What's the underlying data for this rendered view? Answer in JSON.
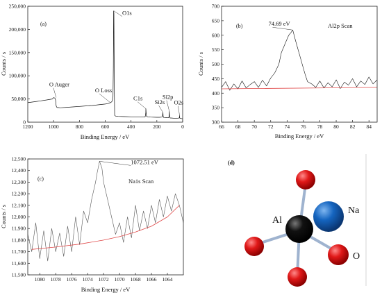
{
  "chart_data": [
    {
      "type": "line",
      "panel_label": "(a)",
      "xlabel": "Binding Energy / eV",
      "ylabel": "Counts / s",
      "xlim": [
        1200,
        0
      ],
      "ylim": [
        0,
        250000
      ],
      "xticks": [
        1200,
        1000,
        800,
        600,
        400,
        200,
        0
      ],
      "xtick_labels": [
        "1200",
        "1000",
        "800",
        "600",
        "400",
        "200",
        "0"
      ],
      "yticks": [
        0,
        50000,
        100000,
        150000,
        200000,
        250000
      ],
      "ytick_labels": [
        "0",
        "50,000",
        "100,000",
        "150,000",
        "200,000",
        "250,000"
      ],
      "series": [
        {
          "x": [
            1200,
            1150,
            1100,
            1050,
            1010,
            1000,
            990,
            985,
            980,
            975,
            970,
            960,
            950,
            900,
            850,
            800,
            750,
            700,
            650,
            600,
            580,
            570,
            560,
            555,
            550,
            545,
            540,
            537,
            535,
            533,
            531,
            529,
            527,
            520,
            500,
            450,
            400,
            350,
            300,
            290,
            286,
            285,
            283,
            280,
            270,
            250,
            200,
            180,
            160,
            155,
            153,
            151,
            148,
            145,
            130,
            120,
            110,
            105,
            103,
            101,
            99,
            96,
            90,
            70,
            50,
            30,
            25,
            24,
            23,
            22,
            20,
            15,
            10,
            5,
            0
          ],
          "y": [
            42000,
            44000,
            46000,
            48000,
            50000,
            53000,
            52000,
            48000,
            35000,
            32000,
            31500,
            31500,
            31000,
            32000,
            33000,
            34000,
            35000,
            36000,
            37500,
            39000,
            40000,
            41000,
            42000,
            43000,
            44000,
            46000,
            55000,
            120000,
            240000,
            235000,
            150000,
            60000,
            15000,
            13000,
            12500,
            12000,
            11500,
            11000,
            11000,
            12000,
            20000,
            29000,
            20000,
            12500,
            11500,
            11000,
            10500,
            10500,
            11000,
            16000,
            21000,
            13000,
            10500,
            10000,
            9800,
            9600,
            9500,
            12000,
            23000,
            13000,
            9500,
            9000,
            9000,
            8500,
            8500,
            8700,
            10500,
            14000,
            10000,
            8500,
            8200,
            8000,
            7800,
            7500,
            7000
          ]
        }
      ],
      "annotations": [
        {
          "text": "O1s",
          "x": 533,
          "y": 240000
        },
        {
          "text": "O Auger",
          "x": 980,
          "y": 53000
        },
        {
          "text": "O Loss",
          "x": 560,
          "y": 42000
        },
        {
          "text": "C1s",
          "x": 285,
          "y": 29000
        },
        {
          "text": "Si2s",
          "x": 153,
          "y": 21000
        },
        {
          "text": "Si2p",
          "x": 103,
          "y": 23000
        },
        {
          "text": "O2s",
          "x": 24,
          "y": 14000
        }
      ]
    },
    {
      "type": "line",
      "panel_label": "(b)",
      "title": "Al2p Scan",
      "xlabel": "Binding Energy / eV",
      "ylabel": "Counts / s",
      "xlim": [
        66,
        85
      ],
      "ylim": [
        300,
        700
      ],
      "xticks": [
        66,
        68,
        70,
        72,
        74,
        76,
        78,
        80,
        82,
        84
      ],
      "xtick_labels": [
        "66",
        "68",
        "70",
        "72",
        "74",
        "76",
        "78",
        "80",
        "82",
        "84"
      ],
      "yticks": [
        300,
        350,
        400,
        450,
        500,
        550,
        600,
        650,
        700
      ],
      "ytick_labels": [
        "300",
        "350",
        "400",
        "450",
        "500",
        "550",
        "600",
        "650",
        "700"
      ],
      "series": [
        {
          "x": [
            66,
            66.5,
            67,
            67.5,
            68,
            68.5,
            69,
            69.5,
            70,
            70.5,
            71,
            71.5,
            72,
            72.5,
            73,
            73.3,
            73.6,
            73.9,
            74.2,
            74.5,
            74.69,
            75,
            75.3,
            75.6,
            75.9,
            76.2,
            76.5,
            77,
            77.5,
            78,
            78.5,
            79,
            79.5,
            80,
            80.5,
            81,
            81.5,
            82,
            82.5,
            83,
            83.5,
            84,
            84.5,
            85
          ],
          "y": [
            420,
            440,
            410,
            432,
            415,
            442,
            418,
            430,
            440,
            420,
            445,
            425,
            452,
            470,
            500,
            540,
            560,
            580,
            600,
            610,
            618,
            585,
            555,
            525,
            495,
            465,
            440,
            432,
            420,
            442,
            418,
            436,
            422,
            446,
            416,
            438,
            428,
            450,
            422,
            442,
            430,
            456,
            432,
            446
          ]
        },
        {
          "name": "baseline",
          "x": [
            66,
            85
          ],
          "y": [
            415,
            420
          ]
        }
      ],
      "annotations": [
        {
          "text": "74.69 eV",
          "x": 74.69,
          "y": 618
        }
      ]
    },
    {
      "type": "line",
      "panel_label": "(c)",
      "title": "Na1s Scan",
      "xlabel": "Binding Energy / eV",
      "ylabel": "Counts / s",
      "xlim": [
        1081.5,
        1062
      ],
      "ylim": [
        11500,
        12500
      ],
      "xticks": [
        1080,
        1078,
        1076,
        1074,
        1072,
        1070,
        1068,
        1066,
        1064
      ],
      "xtick_labels": [
        "1080",
        "1078",
        "1076",
        "1074",
        "1072",
        "1070",
        "1068",
        "1066",
        "1064"
      ],
      "yticks": [
        11500,
        11600,
        11700,
        11800,
        11900,
        12000,
        12100,
        12200,
        12300,
        12400,
        12500
      ],
      "ytick_labels": [
        "11,500",
        "11,600",
        "11,700",
        "11,800",
        "11,900",
        "12,000",
        "12,100",
        "12,200",
        "12,300",
        "12,400",
        "12,500"
      ],
      "series": [
        {
          "x": [
            1081.5,
            1081,
            1080.5,
            1080,
            1079.5,
            1079,
            1078.5,
            1078,
            1077.5,
            1077,
            1076.5,
            1076,
            1075.5,
            1075,
            1074.5,
            1074,
            1073.5,
            1073,
            1072.8,
            1072.51,
            1072.2,
            1072,
            1071.5,
            1071,
            1070.5,
            1070,
            1069.5,
            1069,
            1068.5,
            1068,
            1067.5,
            1067,
            1066.5,
            1066,
            1065.5,
            1065,
            1064.5,
            1064,
            1063.5,
            1063,
            1062.5,
            1062
          ],
          "y": [
            11850,
            11700,
            11950,
            11640,
            11880,
            11620,
            11900,
            11700,
            11860,
            11660,
            11920,
            11700,
            12000,
            11760,
            12050,
            11950,
            12150,
            12300,
            12380,
            12480,
            12420,
            12300,
            12150,
            12000,
            11850,
            11950,
            11780,
            12000,
            11820,
            12100,
            11880,
            12050,
            11900,
            12100,
            11950,
            12150,
            12000,
            12180,
            12050,
            12200,
            12100,
            11950
          ]
        },
        {
          "name": "baseline",
          "x": [
            1081,
            1078,
            1075,
            1072,
            1070,
            1068,
            1066,
            1064,
            1062.5
          ],
          "y": [
            11720,
            11740,
            11765,
            11800,
            11830,
            11870,
            11920,
            12000,
            12100
          ]
        }
      ],
      "annotations": [
        {
          "text": "1072.51 eV",
          "x": 1072.51,
          "y": 12480
        }
      ]
    }
  ],
  "molecule": {
    "panel_label": "(d)",
    "labels": {
      "al": "Al",
      "na": "Na",
      "o": "O"
    },
    "colors": {
      "al": "#000000",
      "na": "#1565c0",
      "o": "#e01818",
      "bond": "#9fb3cf"
    }
  }
}
